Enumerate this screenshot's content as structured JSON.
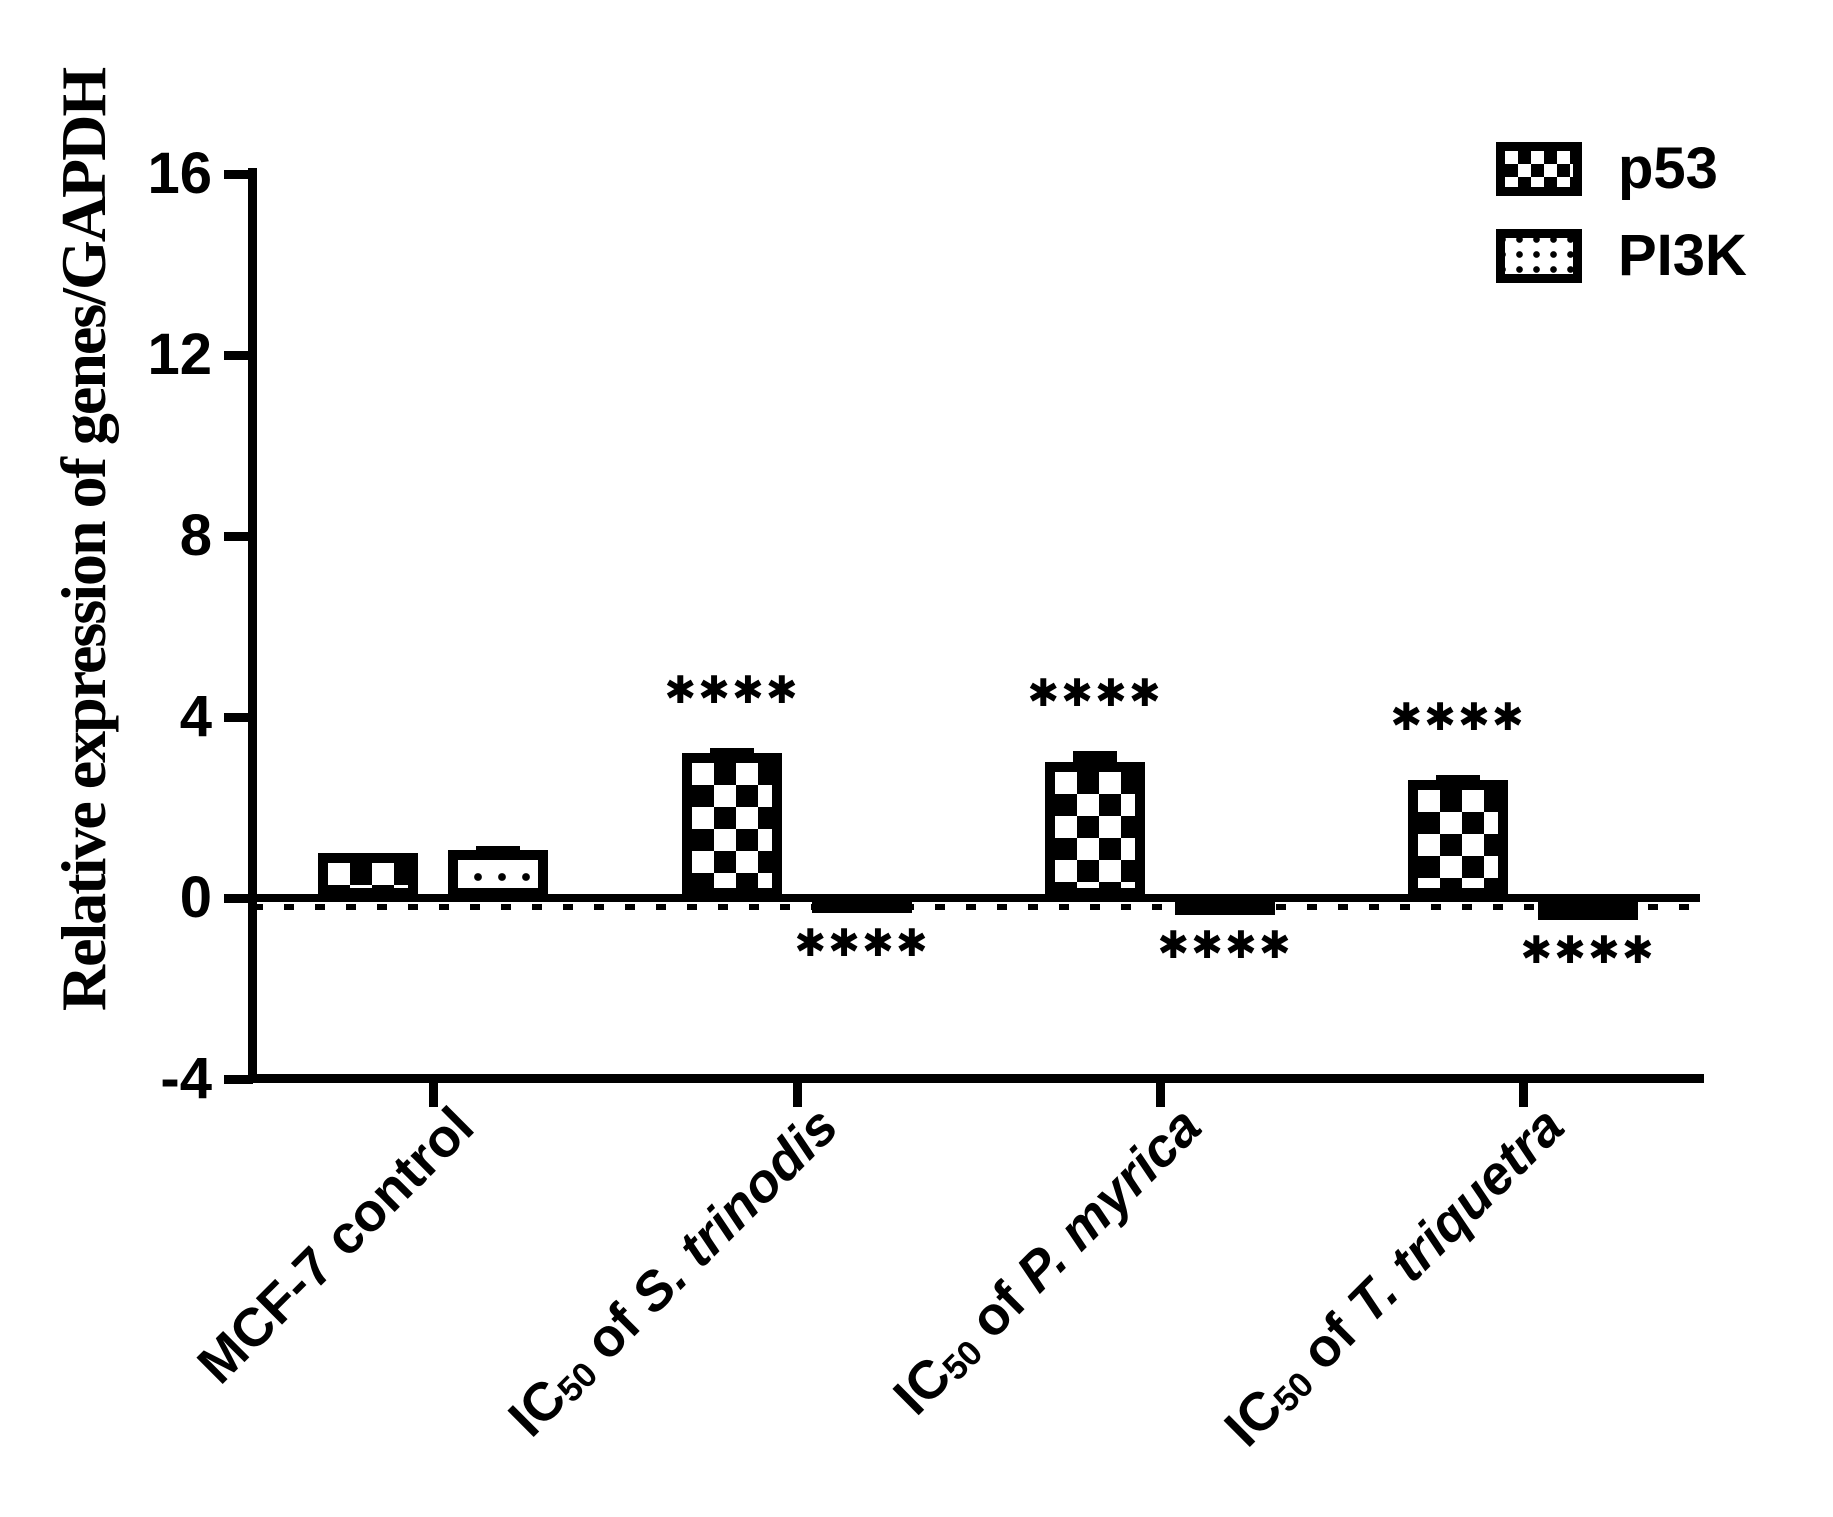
{
  "page": {
    "background": "#ffffff",
    "ink": "#000000"
  },
  "y_axis": {
    "title": "Relative expression of genes/GAPDH"
  },
  "legend": [
    {
      "label": "p53",
      "pattern": "checker"
    },
    {
      "label": "PI3K",
      "pattern": "dots"
    }
  ],
  "x_labels": [
    {
      "prefix": "MCF-7 control",
      "sub": "",
      "mid": "",
      "species": ""
    },
    {
      "prefix": "IC",
      "sub": "50",
      "mid": " of ",
      "species": "S. trinodis"
    },
    {
      "prefix": "IC",
      "sub": "50",
      "mid": " of ",
      "species": "P. myrica"
    },
    {
      "prefix": "IC",
      "sub": "50",
      "mid": " of ",
      "species": "T. triquetra"
    }
  ],
  "chart_data": {
    "type": "bar",
    "title": "",
    "ylabel": "Relative expression of genes/GAPDH",
    "xlabel": "",
    "ylim": [
      -4,
      16
    ],
    "yticks": [
      16,
      12,
      8,
      4,
      0,
      -4
    ],
    "grid": false,
    "legend_position": "top-right",
    "zero_baseline_style": "solid-with-dotted-ticks",
    "categories": [
      "MCF-7 control",
      "IC50 of S. trinodis",
      "IC50 of P. myrica",
      "IC50 of T. triquetra"
    ],
    "series": [
      {
        "name": "p53",
        "pattern": "checker",
        "values": [
          1.0,
          3.2,
          3.0,
          2.6
        ],
        "sem": [
          0.05,
          0.12,
          0.25,
          0.12
        ],
        "significance": [
          "",
          "✱✱✱✱",
          "✱✱✱✱",
          "✱✱✱✱"
        ],
        "significance_position": "above"
      },
      {
        "name": "PI3K",
        "pattern": "dots",
        "values": [
          1.05,
          -0.15,
          -0.2,
          -0.3
        ],
        "sem": [
          0.1,
          0.1,
          0.1,
          0.1
        ],
        "significance": [
          "",
          "✱✱✱✱",
          "✱✱✱✱",
          "✱✱✱✱"
        ],
        "significance_position": "below"
      }
    ]
  }
}
